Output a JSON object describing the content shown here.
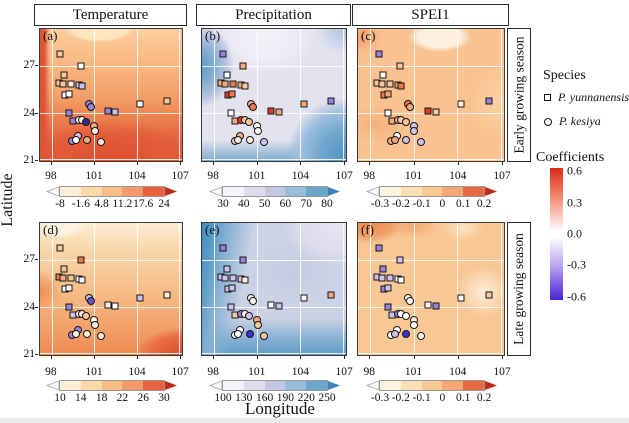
{
  "chart_data": {
    "type": "heatmap",
    "title": "",
    "xlabel": "Longitude",
    "ylabel": "Latitude",
    "x_ticks": [
      98,
      101,
      104,
      107
    ],
    "y_ticks": [
      27,
      24,
      21
    ],
    "xlim": [
      97.17,
      107.2
    ],
    "ylim": [
      20.9,
      29.35
    ],
    "grid": true,
    "legend_position": "right",
    "col_titles": [
      "Temperature",
      "Precipitation",
      "SPEI1"
    ],
    "row_strips": [
      "Early growing season",
      "Late growing season"
    ],
    "panels": [
      {
        "key": "a",
        "label": "(a)",
        "col": "Temperature",
        "row": "Early growing season",
        "palette": "temperature",
        "colorbar_ticks": [
          "-8",
          "-1.6",
          "4.8",
          "11.2",
          "17.6",
          "24"
        ]
      },
      {
        "key": "b",
        "label": "(b)",
        "col": "Precipitation",
        "row": "Early growing season",
        "palette": "precipitation",
        "colorbar_ticks": [
          "30",
          "40",
          "50",
          "60",
          "70",
          "80"
        ]
      },
      {
        "key": "c",
        "label": "(c)",
        "col": "SPEI1",
        "row": "Early growing season",
        "palette": "spei",
        "colorbar_ticks": [
          "-0.3",
          "-0.2",
          "-0.1",
          "0",
          "0.1",
          "0.2"
        ]
      },
      {
        "key": "d",
        "label": "(d)",
        "col": "Temperature",
        "row": "Late growing season",
        "palette": "temperature",
        "colorbar_ticks": [
          "10",
          "14",
          "18",
          "22",
          "26",
          "30"
        ]
      },
      {
        "key": "e",
        "label": "(e)",
        "col": "Precipitation",
        "row": "Late growing season",
        "palette": "precipitation",
        "colorbar_ticks": [
          "100",
          "130",
          "160",
          "190",
          "220",
          "250"
        ]
      },
      {
        "key": "f",
        "label": "(f)",
        "col": "SPEI1",
        "row": "Late growing season",
        "palette": "spei",
        "colorbar_ticks": [
          "-0.3",
          "-0.2",
          "-0.1",
          "0",
          "0.1",
          "0.2"
        ]
      }
    ],
    "colorbar_palettes": {
      "temperature": {
        "segments": [
          "#fdeed8",
          "#fbd9a9",
          "#f8bd82",
          "#f5996a",
          "#e9613f"
        ],
        "arrow_left": "#ffffff",
        "arrow_right": "#c22a18"
      },
      "precipitation": {
        "segments": [
          "#f4f3f9",
          "#dedded",
          "#c1c7e2",
          "#9abcdb",
          "#6aa5cc"
        ],
        "arrow_left": "#ffffff",
        "arrow_right": "#3884bb"
      },
      "spei": {
        "segments": [
          "#fdf3e1",
          "#fbe0b6",
          "#f8c890",
          "#f5a873",
          "#e96a42"
        ],
        "arrow_left": "#ffffff",
        "arrow_right": "#c22a18"
      }
    },
    "legend": {
      "species_title": "Species",
      "species": [
        {
          "marker": "square",
          "label": "P. yunnanensis"
        },
        {
          "marker": "circle",
          "label": "P. kesiya"
        }
      ],
      "coefficients_title": "Coefficients",
      "coef_ticks": [
        "0.6",
        "0.3",
        "0.0",
        "-0.3",
        "-0.6"
      ],
      "coef_gradient": [
        "#d92a12",
        "#f0785c",
        "#ffffff",
        "#b7a6ee",
        "#4b22d6"
      ]
    },
    "fill_palette": {
      "W": "#ffffff",
      "C": "#fdeede",
      "T": "#f6c89e",
      "P": "#f4a97c",
      "O": "#ec7a4b",
      "R": "#dd3b22",
      "LP": "#cfc3ee",
      "MP": "#9b82da",
      "DP": "#6b51cf",
      "B": "#3f31c9",
      "N": "#322b8e"
    },
    "sites": [
      {
        "lon": 98.6,
        "lat": 27.75,
        "marker": "square",
        "species": "P. yunnanensis"
      },
      {
        "lon": 100.05,
        "lat": 26.95,
        "marker": "square",
        "species": "P. yunnanensis"
      },
      {
        "lon": 98.9,
        "lat": 26.4,
        "marker": "square",
        "species": "P. yunnanensis"
      },
      {
        "lon": 98.5,
        "lat": 25.9,
        "marker": "square",
        "species": "P. yunnanensis"
      },
      {
        "lon": 98.8,
        "lat": 25.85,
        "marker": "square",
        "species": "P. yunnanensis"
      },
      {
        "lon": 99.35,
        "lat": 25.85,
        "marker": "square",
        "species": "P. yunnanensis"
      },
      {
        "lon": 99.9,
        "lat": 25.75,
        "marker": "square",
        "species": "P. yunnanensis"
      },
      {
        "lon": 100.15,
        "lat": 25.7,
        "marker": "square",
        "species": "P. yunnanensis"
      },
      {
        "lon": 98.95,
        "lat": 25.15,
        "marker": "square",
        "species": "P. yunnanensis"
      },
      {
        "lon": 99.25,
        "lat": 25.2,
        "marker": "square",
        "species": "P. yunnanensis"
      },
      {
        "lon": 99.2,
        "lat": 24.0,
        "marker": "square",
        "species": "P. yunnanensis"
      },
      {
        "lon": 99.5,
        "lat": 23.45,
        "marker": "square",
        "species": "P. yunnanensis"
      },
      {
        "lon": 101.95,
        "lat": 24.1,
        "marker": "square",
        "species": "P. yunnanensis"
      },
      {
        "lon": 102.5,
        "lat": 24.05,
        "marker": "square",
        "species": "P. yunnanensis"
      },
      {
        "lon": 104.25,
        "lat": 24.55,
        "marker": "square",
        "species": "P. yunnanensis"
      },
      {
        "lon": 106.15,
        "lat": 24.75,
        "marker": "square",
        "species": "P. yunnanensis"
      },
      {
        "lon": 100.6,
        "lat": 24.55,
        "marker": "circle",
        "species": "P. kesiya"
      },
      {
        "lon": 100.75,
        "lat": 24.35,
        "marker": "circle",
        "species": "P. kesiya"
      },
      {
        "lon": 99.9,
        "lat": 23.5,
        "marker": "circle",
        "species": "P. kesiya"
      },
      {
        "lon": 100.15,
        "lat": 23.55,
        "marker": "circle",
        "species": "P. kesiya"
      },
      {
        "lon": 100.45,
        "lat": 23.4,
        "marker": "circle",
        "species": "P. kesiya"
      },
      {
        "lon": 101.0,
        "lat": 23.15,
        "marker": "circle",
        "species": "P. kesiya"
      },
      {
        "lon": 101.05,
        "lat": 22.8,
        "marker": "circle",
        "species": "P. kesiya"
      },
      {
        "lon": 99.85,
        "lat": 22.5,
        "marker": "circle",
        "species": "P. kesiya"
      },
      {
        "lon": 100.5,
        "lat": 22.25,
        "marker": "circle",
        "species": "P. kesiya"
      },
      {
        "lon": 99.45,
        "lat": 22.15,
        "marker": "circle",
        "species": "P. kesiya"
      },
      {
        "lon": 99.7,
        "lat": 22.25,
        "marker": "circle",
        "species": "P. kesiya"
      },
      {
        "lon": 101.5,
        "lat": 22.1,
        "marker": "circle",
        "species": "P. kesiya"
      }
    ],
    "site_fills": {
      "a": [
        "T",
        "W",
        "T",
        "T",
        "T",
        "C",
        "LP",
        "LP",
        "W",
        "W",
        "MP",
        "MP",
        "MP",
        "LP",
        "W",
        "T",
        "MP",
        "MP",
        "W",
        "C",
        "N",
        "P",
        "C",
        "LP",
        "P",
        "MP",
        "W",
        "C"
      ],
      "b": [
        "MP",
        "P",
        "W",
        "P",
        "P",
        "O",
        "P",
        "T",
        "R",
        "O",
        "W",
        "P",
        "R",
        "P",
        "P",
        "MP",
        "P",
        "O",
        "R",
        "T",
        "T",
        "W",
        "W",
        "P",
        "C",
        "T",
        "C",
        "LP"
      ],
      "c": [
        "MP",
        "T",
        "W",
        "T",
        "T",
        "T",
        "P",
        "O",
        "O",
        "P",
        "W",
        "P",
        "R",
        "T",
        "C",
        "MP",
        "O",
        "P",
        "P",
        "T",
        "T",
        "LP",
        "LP",
        "W",
        "LP",
        "P",
        "P",
        "LP"
      ],
      "d": [
        "T",
        "O",
        "T",
        "O",
        "P",
        "T",
        "W",
        "W",
        "W",
        "W",
        "MP",
        "LP",
        "C",
        "W",
        "LP",
        "C",
        "LP",
        "DP",
        "C",
        "C",
        "T",
        "W",
        "C",
        "MP",
        "C",
        "MP",
        "C",
        "C"
      ],
      "e": [
        "MP",
        "MP",
        "LP",
        "LP",
        "LP",
        "LP",
        "LP",
        "C",
        "LP",
        "LP",
        "LP",
        "T",
        "W",
        "LP",
        "W",
        "P",
        "W",
        "W",
        "MP",
        "W",
        "LP",
        "P",
        "T",
        "W",
        "B",
        "W",
        "W",
        "T"
      ],
      "f": [
        "MP",
        "LP",
        "MP",
        "LP",
        "LP",
        "LP",
        "W",
        "W",
        "MP",
        "LP",
        "MP",
        "LP",
        "W",
        "MP",
        "W",
        "T",
        "W",
        "W",
        "MP",
        "W",
        "W",
        "C",
        "W",
        "W",
        "B",
        "W",
        "LP",
        "W"
      ]
    }
  }
}
